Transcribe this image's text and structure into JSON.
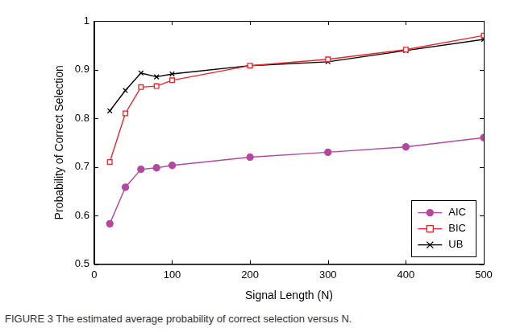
{
  "chart_data": {
    "type": "line",
    "x_label": "Signal Length (N)",
    "y_label": "Probability of Correct Selection",
    "caption": "FIGURE 3 The estimated average probability of correct selection versus N.",
    "x": [
      20,
      40,
      60,
      80,
      100,
      200,
      300,
      400,
      500
    ],
    "series": [
      {
        "name": "AIC",
        "color": "#b5489e",
        "marker": "circle",
        "values": [
          0.583,
          0.658,
          0.695,
          0.698,
          0.703,
          0.72,
          0.73,
          0.741,
          0.76
        ]
      },
      {
        "name": "BIC",
        "color": "#e8262b",
        "marker": "open_square",
        "values": [
          0.71,
          0.81,
          0.864,
          0.866,
          0.878,
          0.908,
          0.921,
          0.941,
          0.97
        ]
      },
      {
        "name": "UB",
        "color": "#000000",
        "marker": "x",
        "values": [
          0.815,
          0.857,
          0.893,
          0.885,
          0.891,
          0.908,
          0.916,
          0.939,
          0.962
        ]
      }
    ],
    "xlim": [
      0,
      500
    ],
    "xticks": [
      0,
      100,
      200,
      300,
      400,
      500
    ],
    "ylim": [
      0.5,
      1
    ],
    "yticks": [
      0.5,
      0.6,
      0.7,
      0.8,
      0.9,
      1
    ],
    "grid": false,
    "legend": "lower right"
  }
}
